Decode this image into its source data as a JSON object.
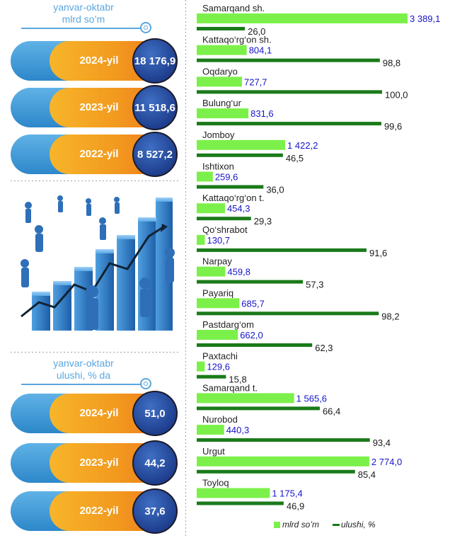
{
  "top_panel": {
    "header_line1": "yanvar-oktabr",
    "header_line2": "mlrd so’m",
    "rows": [
      {
        "year": "2024-yil",
        "value": "18 176,9"
      },
      {
        "year": "2023-yil",
        "value": "11 518,6"
      },
      {
        "year": "2022-yil",
        "value": "8 527,2"
      }
    ]
  },
  "bottom_panel": {
    "header_line1": "yanvar-oktabr",
    "header_line2": "ulushi, % da",
    "rows": [
      {
        "year": "2024-yil",
        "value": "51,0"
      },
      {
        "year": "2023-yil",
        "value": "44,2"
      },
      {
        "year": "2022-yil",
        "value": "37,6"
      }
    ]
  },
  "colors": {
    "green_bar": "#7cf04a",
    "dark_green_bar": "#1a7a1a",
    "value_label": "#1515c8",
    "share_label": "#1a1a1a",
    "header_blue": "#5aa7de"
  },
  "chart_data": {
    "type": "bar",
    "orientation": "horizontal",
    "categories": [
      "Samarqand sh.",
      "Kattaqo‘rg‘on sh.",
      "Oqdaryo",
      "Bulung‘ur",
      "Jomboy",
      "Ishtixon",
      "Kattaqo‘rg‘on t.",
      "Qo‘shrabot",
      "Narpay",
      "Payariq",
      "Pastdarg‘om",
      "Paxtachi",
      "Samarqand t.",
      "Nurobod",
      "Urgut",
      "Toyloq"
    ],
    "series": [
      {
        "name": "mlrd so’m",
        "values": [
          3389.1,
          804.1,
          727.7,
          831.6,
          1422.2,
          259.6,
          454.3,
          130.7,
          459.8,
          685.7,
          662.0,
          129.6,
          1565.6,
          440.3,
          2774.0,
          1175.4
        ],
        "labels": [
          "3 389,1",
          "804,1",
          "727,7",
          "831,6",
          "1 422,2",
          "259,6",
          "454,3",
          "130,7",
          "459,8",
          "685,7",
          "662,0",
          "129,6",
          "1 565,6",
          "440,3",
          "2 774,0",
          "1 175,4"
        ]
      },
      {
        "name": "ulushi, %",
        "values": [
          26.0,
          98.8,
          100.0,
          99.6,
          46.5,
          36.0,
          29.3,
          91.6,
          57.3,
          98.2,
          62.3,
          15.8,
          66.4,
          93.4,
          85.4,
          46.9
        ],
        "labels": [
          "26,0",
          "98,8",
          "100,0",
          "99,6",
          "46,5",
          "36,0",
          "29,3",
          "91,6",
          "57,3",
          "98,2",
          "62,3",
          "15,8",
          "66,4",
          "93,4",
          "85,4",
          "46,9"
        ]
      }
    ],
    "legend": {
      "position": "bottom-right",
      "items": [
        "mlrd so’m",
        "ulushi, %"
      ]
    }
  }
}
